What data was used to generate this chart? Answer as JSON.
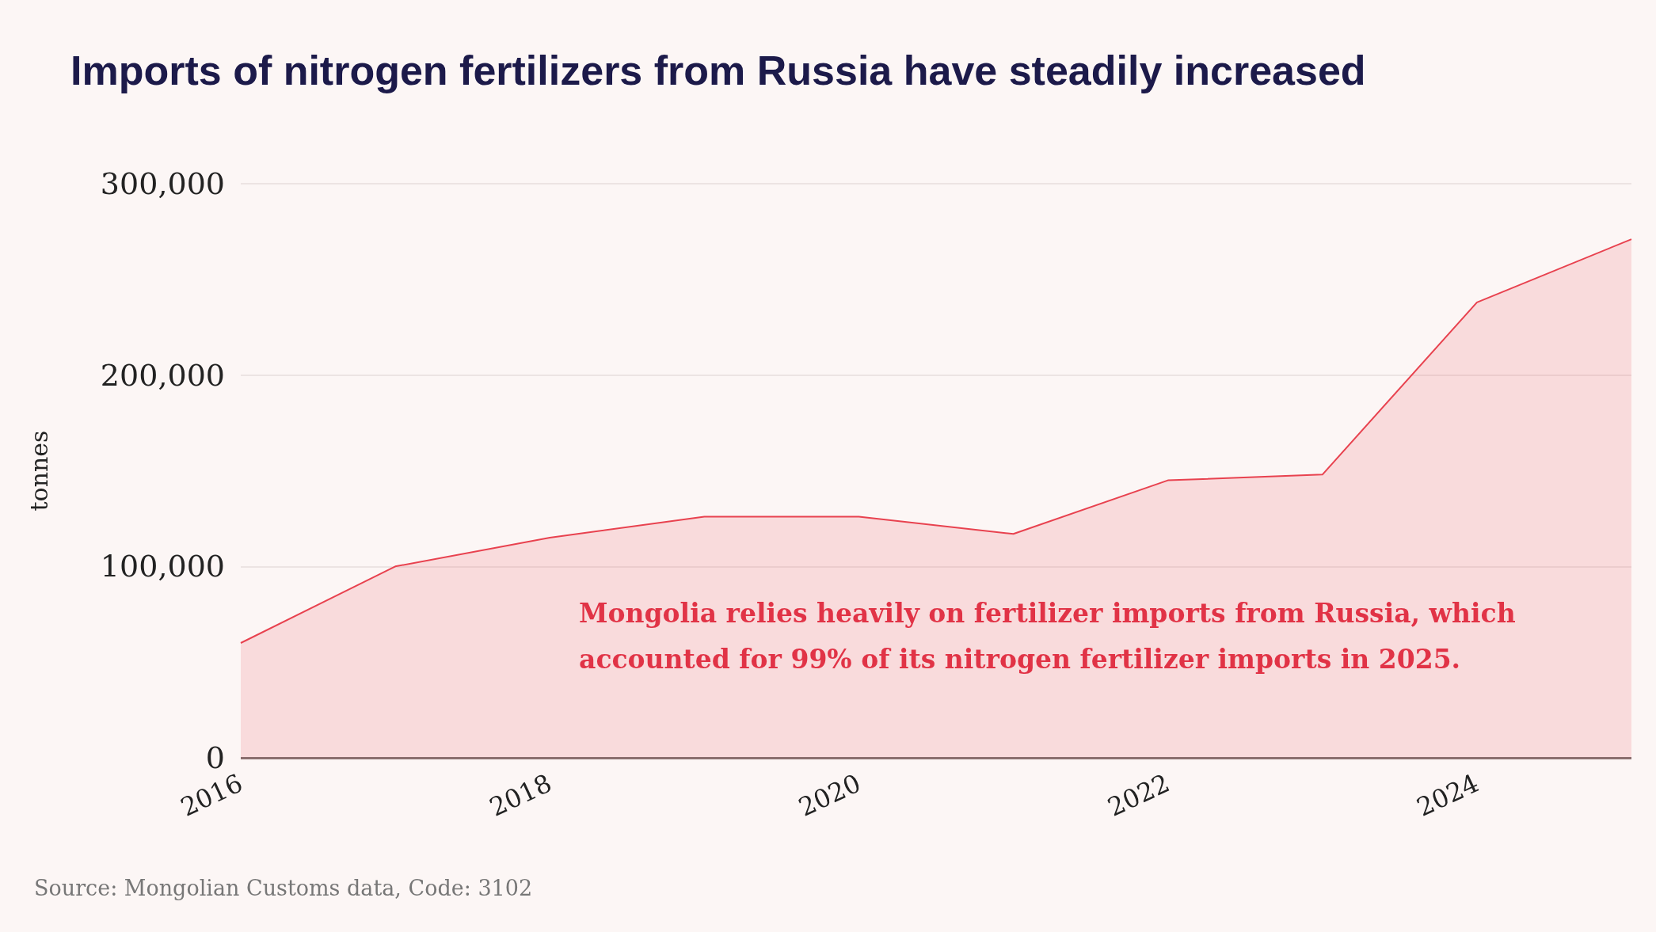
{
  "chart_data": {
    "type": "area",
    "title": "Imports of nitrogen fertilizers from Russia have steadily increased",
    "ylabel": "tonnes",
    "x": [
      2016,
      2017,
      2018,
      2019,
      2020,
      2021,
      2022,
      2023,
      2024,
      2025
    ],
    "series": [
      {
        "color": "#e8424f",
        "values": [
          60000,
          100000,
          115000,
          126000,
          126000,
          117000,
          145000,
          148000,
          238000,
          271000
        ]
      }
    ],
    "xlim": [
      2016,
      2025
    ],
    "xticks": [
      2016,
      2018,
      2020,
      2022,
      2024
    ],
    "ylim": [
      0,
      300000
    ],
    "yticks": [
      0,
      {
        "value": 100000,
        "label": "100,000"
      },
      {
        "value": 200000,
        "label": "200,000"
      },
      {
        "value": 300000,
        "label": "300,000"
      }
    ],
    "grid": "y",
    "marker": "none",
    "annotations": [
      "Mongolia relies heavily on fertilizer imports from Russia, which accounted for 99% of its nitrogen fertilizer imports in 2025.",
      "Source: Mongolian Customs data, Code: 3102"
    ]
  }
}
